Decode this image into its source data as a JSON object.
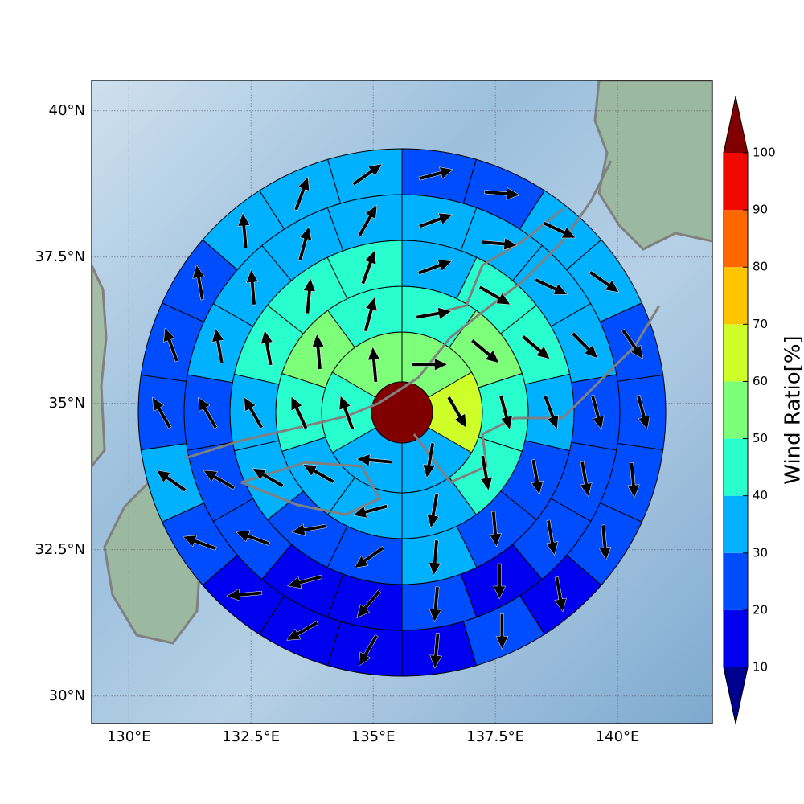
{
  "chart_data": {
    "type": "polarmap",
    "xlim": [
      129.24,
      141.94
    ],
    "ylim": [
      29.53,
      40.52
    ],
    "xticks": [
      {
        "value": 130,
        "label": "130°E"
      },
      {
        "value": 132.5,
        "label": "132.5°E"
      },
      {
        "value": 135,
        "label": "135°E"
      },
      {
        "value": 137.5,
        "label": "137.5°E"
      },
      {
        "value": 140,
        "label": "140°E"
      }
    ],
    "yticks": [
      {
        "value": 30,
        "label": "30°N"
      },
      {
        "value": 32.5,
        "label": "32.5°N"
      },
      {
        "value": 35,
        "label": "35°N"
      },
      {
        "value": 37.5,
        "label": "37.5°N"
      },
      {
        "value": 40,
        "label": "40°N"
      }
    ],
    "grid": true,
    "colorbar_label": "Wind Ratio[%]",
    "cticks": [
      10,
      20,
      30,
      40,
      50,
      60,
      70,
      80,
      90,
      100
    ],
    "colors": [
      "#0000f1",
      "#004dff",
      "#00b1ff",
      "#29ffce",
      "#7dff7a",
      "#ceff29",
      "#ffc400",
      "#ff6800",
      "#f10800"
    ],
    "under_color": "#00008f",
    "over_color": "#800000",
    "center_value": 100,
    "rings": [
      {
        "values": [
          55,
          65,
          35,
          35,
          45,
          55
        ],
        "directions": [
          90,
          150,
          190,
          275,
          340,
          355
        ]
      },
      {
        "values": [
          45,
          55,
          45,
          45,
          35,
          35,
          35,
          45,
          55,
          45
        ],
        "directions": [
          80,
          130,
          165,
          170,
          190,
          255,
          300,
          335,
          355,
          15
        ]
      },
      {
        "values": [
          35,
          45,
          45,
          35,
          25,
          25,
          35,
          25,
          25,
          35,
          35,
          45,
          45,
          45
        ],
        "directions": [
          70,
          120,
          130,
          160,
          170,
          175,
          185,
          235,
          260,
          300,
          330,
          350,
          5,
          20
        ]
      },
      {
        "values": [
          35,
          35,
          35,
          35,
          25,
          25,
          25,
          15,
          25,
          15,
          15,
          25,
          25,
          25,
          35,
          35,
          35,
          35
        ],
        "directions": [
          70,
          95,
          115,
          135,
          165,
          170,
          170,
          180,
          185,
          220,
          255,
          290,
          300,
          330,
          350,
          355,
          15,
          30
        ]
      },
      {
        "values": [
          25,
          25,
          35,
          35,
          25,
          25,
          25,
          25,
          15,
          25,
          15,
          15,
          15,
          15,
          25,
          35,
          25,
          25,
          25,
          35,
          35,
          35
        ],
        "directions": [
          75,
          95,
          115,
          125,
          145,
          165,
          175,
          175,
          170,
          180,
          185,
          210,
          240,
          265,
          290,
          305,
          330,
          340,
          350,
          355,
          20,
          55
        ]
      }
    ]
  }
}
